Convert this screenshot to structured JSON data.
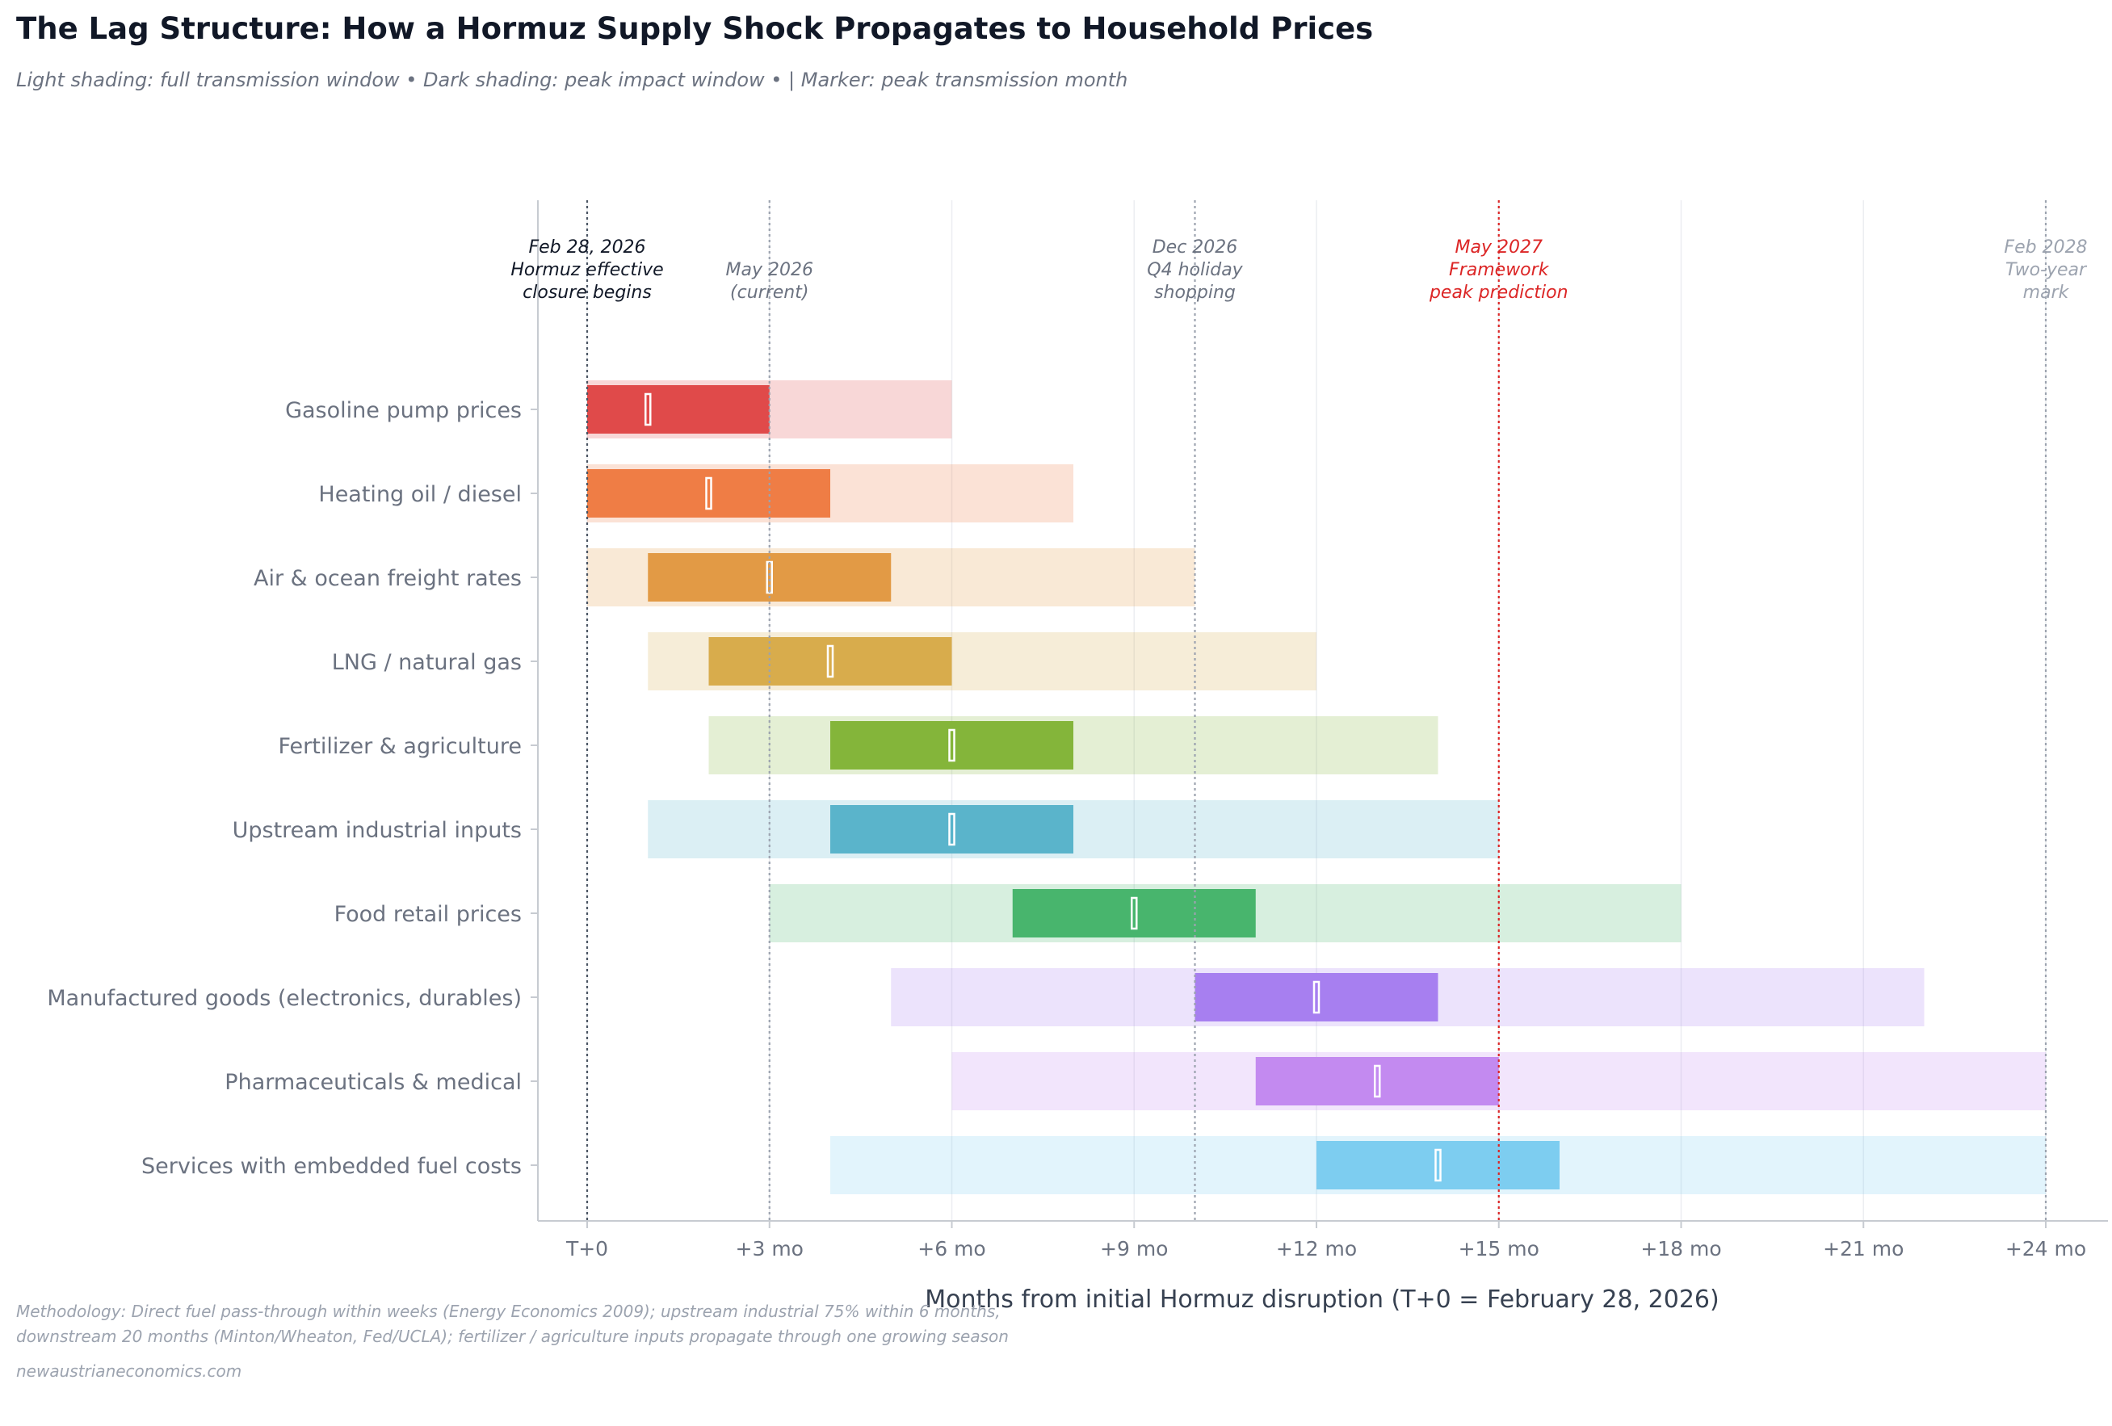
{
  "header": {
    "title": "The Lag Structure: How a Hormuz Supply Shock Propagates to Household Prices",
    "subtitle": "Light shading: full transmission window  •  Dark shading: peak impact window  •  | Marker: peak transmission month"
  },
  "footer": {
    "line1": "Methodology: Direct fuel pass-through within weeks (Energy Economics 2009); upstream industrial 75% within 6 months,",
    "line2": "downstream 20 months (Minton/Wheaton, Fed/UCLA); fertilizer / agriculture inputs propagate through one growing season",
    "source": "newaustrianeconomics.com"
  },
  "chart_data": {
    "type": "gantt",
    "xlabel": "Months from initial Hormuz disruption  (T+0 = February 28, 2026)",
    "xlim": [
      -0.8,
      25.0
    ],
    "x_ticks": [
      0,
      3,
      6,
      9,
      12,
      15,
      18,
      21,
      24
    ],
    "x_tick_labels": [
      "T+0",
      "+3 mo",
      "+6 mo",
      "+9 mo",
      "+12 mo",
      "+15 mo",
      "+18 mo",
      "+21 mo",
      "+24 mo"
    ],
    "grid": "vertical",
    "series": [
      {
        "label": "Gasoline pump prices",
        "color": "#e04a4a",
        "full": [
          0,
          6
        ],
        "peak": [
          0,
          3
        ],
        "marker": 1
      },
      {
        "label": "Heating oil / diesel",
        "color": "#ef7d45",
        "full": [
          0,
          8
        ],
        "peak": [
          0,
          4
        ],
        "marker": 2
      },
      {
        "label": "Air & ocean freight rates",
        "color": "#e29a45",
        "full": [
          0,
          10
        ],
        "peak": [
          1,
          5
        ],
        "marker": 3
      },
      {
        "label": "LNG / natural gas",
        "color": "#d8ac4c",
        "full": [
          1,
          12
        ],
        "peak": [
          2,
          6
        ],
        "marker": 4
      },
      {
        "label": "Fertilizer & agriculture",
        "color": "#84b53a",
        "full": [
          2,
          14
        ],
        "peak": [
          4,
          8
        ],
        "marker": 6
      },
      {
        "label": "Upstream industrial inputs",
        "color": "#5ab4cb",
        "full": [
          1,
          15
        ],
        "peak": [
          4,
          8
        ],
        "marker": 6
      },
      {
        "label": "Food retail prices",
        "color": "#48b56d",
        "full": [
          3,
          18
        ],
        "peak": [
          7,
          11
        ],
        "marker": 9
      },
      {
        "label": "Manufactured goods (electronics, durables)",
        "color": "#a77ff0",
        "full": [
          5,
          22
        ],
        "peak": [
          10,
          14
        ],
        "marker": 12
      },
      {
        "label": "Pharmaceuticals & medical",
        "color": "#c38af0",
        "full": [
          6,
          24
        ],
        "peak": [
          11,
          15
        ],
        "marker": 13
      },
      {
        "label": "Services with embedded fuel costs",
        "color": "#7dcdf0",
        "full": [
          4,
          24
        ],
        "peak": [
          12,
          16
        ],
        "marker": 14
      }
    ],
    "annotations": [
      {
        "x": 0,
        "lines": [
          "Feb 28, 2026",
          "Hormuz effective",
          "closure begins"
        ],
        "color": "#111827",
        "line_color": "#4b5563"
      },
      {
        "x": 3,
        "lines": [
          "May 2026",
          "(current)"
        ],
        "color": "#6b7280",
        "line_color": "#9ca3af"
      },
      {
        "x": 10,
        "lines": [
          "Dec 2026",
          "Q4 holiday",
          "shopping"
        ],
        "color": "#6b7280",
        "line_color": "#9ca3af"
      },
      {
        "x": 15,
        "lines": [
          "May 2027",
          "Framework",
          "peak prediction"
        ],
        "color": "#dc2626",
        "line_color": "#dc2626"
      },
      {
        "x": 24,
        "lines": [
          "Feb 2028",
          "Two-year",
          "mark"
        ],
        "color": "#9ca3af",
        "line_color": "#9ca3af"
      }
    ]
  }
}
